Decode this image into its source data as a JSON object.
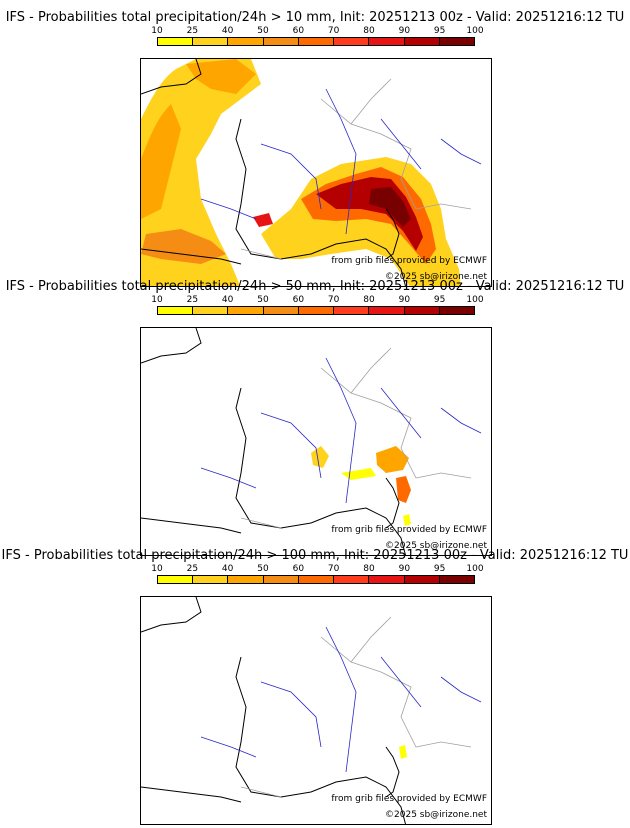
{
  "panels": [
    {
      "title": "IFS - Probabilities total precipitation/24h > 10 mm, Init: 20251213 00z - Valid: 20251216:12 TU",
      "threshold_mm": 10
    },
    {
      "title": "IFS - Probabilities total precipitation/24h > 50 mm, Init: 20251213 00z - Valid: 20251216:12 TU",
      "threshold_mm": 50
    },
    {
      "title": "IFS - Probabilities total precipitation/24h > 100 mm, Init: 20251213 00z - Valid: 20251216:12 TU",
      "threshold_mm": 100
    }
  ],
  "colorbar": {
    "ticks": [
      "10",
      "25",
      "40",
      "50",
      "60",
      "70",
      "80",
      "90",
      "95",
      "100"
    ],
    "colors": [
      "#ffff00",
      "#ffd21e",
      "#ffa500",
      "#f58c14",
      "#ff6a00",
      "#ff3c1e",
      "#e61414",
      "#b40000",
      "#780000"
    ]
  },
  "credits": {
    "source": "from grib files provided by ECMWF",
    "copyright": "©2025 sb@irizone.net"
  },
  "colors": {
    "coast": "#000000",
    "border": "#a0a0a0",
    "river": "#2828c8"
  }
}
